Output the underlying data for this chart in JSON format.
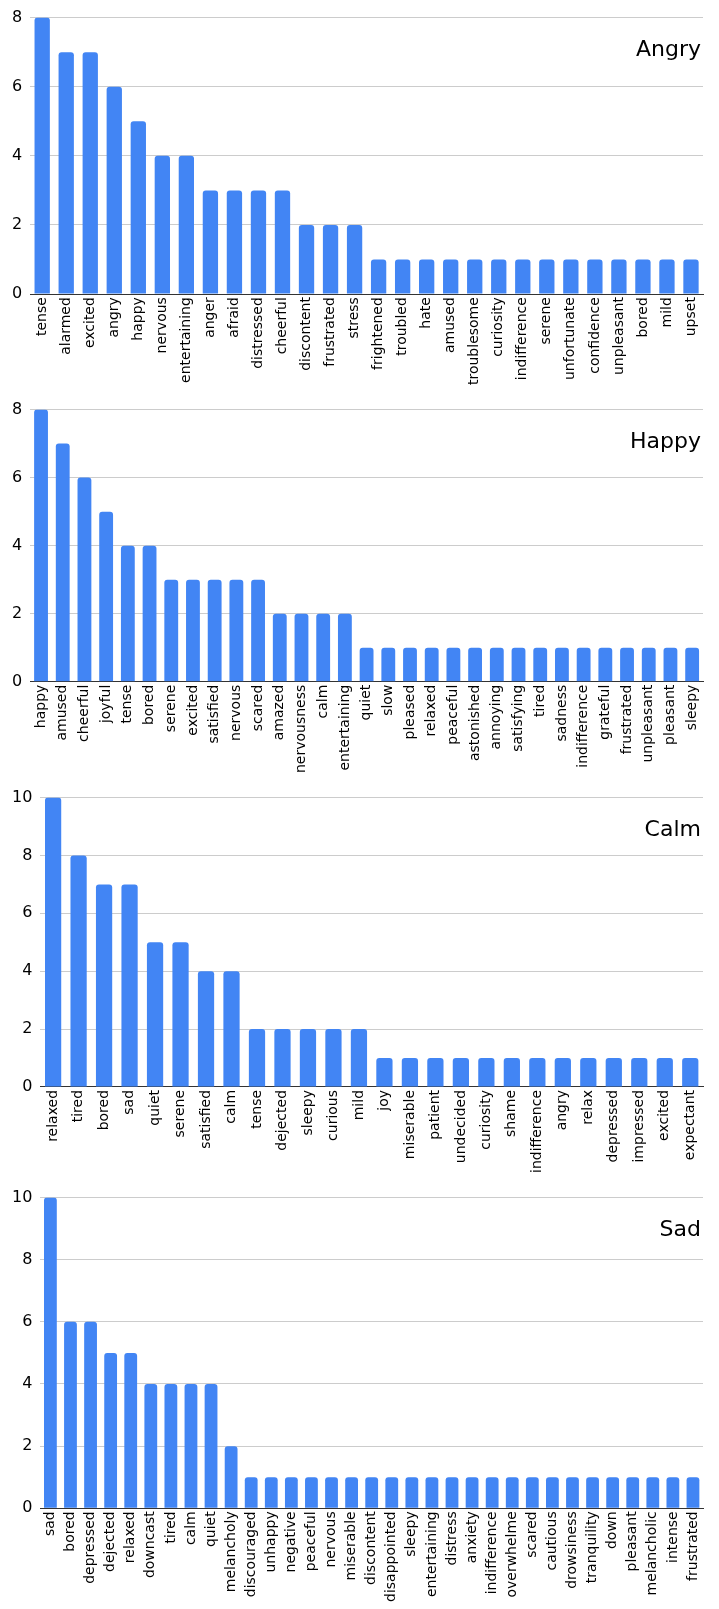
{
  "chart_data": [
    {
      "type": "bar",
      "title": "Angry",
      "categories": [
        "tense",
        "alarmed",
        "excited",
        "angry",
        "happy",
        "nervous",
        "entertaining",
        "anger",
        "afraid",
        "distressed",
        "cheerful",
        "discontent",
        "frustrated",
        "stress",
        "frightened",
        "troubled",
        "hate",
        "amused",
        "troublesome",
        "curiosity",
        "indifference",
        "serene",
        "unfortunate",
        "confidence",
        "unpleasant",
        "bored",
        "mild",
        "upset"
      ],
      "values": [
        8,
        7,
        7,
        6,
        5,
        4,
        4,
        3,
        3,
        3,
        3,
        2,
        2,
        2,
        1,
        1,
        1,
        1,
        1,
        1,
        1,
        1,
        1,
        1,
        1,
        1,
        1,
        1
      ],
      "color": "#4285f4",
      "ylim": [
        0,
        8
      ],
      "yticks": [
        0,
        2,
        4,
        6,
        8
      ],
      "grid": "y"
    },
    {
      "type": "bar",
      "title": "Happy",
      "categories": [
        "happy",
        "amused",
        "cheerful",
        "joyful",
        "tense",
        "bored",
        "serene",
        "excited",
        "satisfied",
        "nervous",
        "scared",
        "amazed",
        "nervousness",
        "calm",
        "entertaining",
        "quiet",
        "slow",
        "pleased",
        "relaxed",
        "peaceful",
        "astonished",
        "annoying",
        "satisfying",
        "tired",
        "sadness",
        "indifference",
        "grateful",
        "frustrated",
        "unpleasant",
        "pleasant",
        "sleepy"
      ],
      "values": [
        8,
        7,
        6,
        5,
        4,
        4,
        3,
        3,
        3,
        3,
        3,
        2,
        2,
        2,
        2,
        1,
        1,
        1,
        1,
        1,
        1,
        1,
        1,
        1,
        1,
        1,
        1,
        1,
        1,
        1,
        1
      ],
      "color": "#4285f4",
      "ylim": [
        0,
        8
      ],
      "yticks": [
        0,
        2,
        4,
        6,
        8
      ],
      "grid": "y"
    },
    {
      "type": "bar",
      "title": "Calm",
      "categories": [
        "relaxed",
        "tired",
        "bored",
        "sad",
        "quiet",
        "serene",
        "satisfied",
        "calm",
        "tense",
        "dejected",
        "sleepy",
        "curious",
        "mild",
        "joy",
        "miserable",
        "patient",
        "undecided",
        "curiosity",
        "shame",
        "indifference",
        "angry",
        "relax",
        "depressed",
        "impressed",
        "excited",
        "expectant"
      ],
      "values": [
        10,
        8,
        7,
        7,
        5,
        5,
        4,
        4,
        2,
        2,
        2,
        2,
        2,
        1,
        1,
        1,
        1,
        1,
        1,
        1,
        1,
        1,
        1,
        1,
        1,
        1
      ],
      "color": "#4285f4",
      "ylim": [
        0,
        10
      ],
      "yticks": [
        0,
        2,
        4,
        6,
        8,
        10
      ],
      "grid": "y"
    },
    {
      "type": "bar",
      "title": "Sad",
      "categories": [
        "sad",
        "bored",
        "depressed",
        "dejected",
        "relaxed",
        "downcast",
        "tired",
        "calm",
        "quiet",
        "melancholy",
        "discouraged",
        "unhappy",
        "negative",
        "peaceful",
        "nervous",
        "miserable",
        "discontent",
        "disappointed",
        "sleepy",
        "entertaining",
        "distress",
        "anxiety",
        "indifference",
        "overwhelme",
        "scared",
        "cautious",
        "drowsiness",
        "tranquility",
        "down",
        "pleasant",
        "melancholic",
        "intense",
        "frustrated"
      ],
      "values": [
        10,
        6,
        6,
        5,
        5,
        4,
        4,
        4,
        4,
        2,
        1,
        1,
        1,
        1,
        1,
        1,
        1,
        1,
        1,
        1,
        1,
        1,
        1,
        1,
        1,
        1,
        1,
        1,
        1,
        1,
        1,
        1,
        1
      ],
      "color": "#4285f4",
      "ylim": [
        0,
        10
      ],
      "yticks": [
        0,
        2,
        4,
        6,
        8,
        10
      ],
      "grid": "y"
    }
  ]
}
